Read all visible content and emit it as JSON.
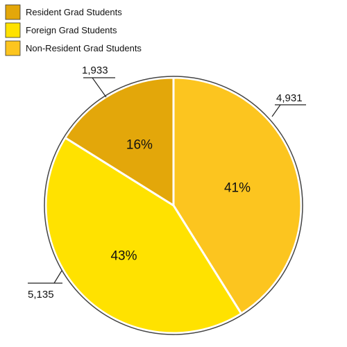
{
  "chart_data": {
    "type": "pie",
    "start": "12 o'clock",
    "direction": "clockwise",
    "categories": [
      "Non-Resident Grad Students",
      "Foreign Grad Students",
      "Resident Grad Students"
    ],
    "values": [
      4931,
      5135,
      1933
    ],
    "value_labels": [
      "4,931",
      "5,135",
      "1,933"
    ],
    "percent_labels": [
      "41%",
      "43%",
      "16%"
    ],
    "colors": [
      "#FCC51F",
      "#FFE200",
      "#E3A70A"
    ],
    "legend": {
      "position": "top-left",
      "entries": [
        {
          "label": "Resident Grad Students",
          "color": "#E3A70A"
        },
        {
          "label": "Foreign Grad Students",
          "color": "#FFE200"
        },
        {
          "label": "Non-Resident Grad Students",
          "color": "#FCC51F"
        }
      ]
    }
  }
}
